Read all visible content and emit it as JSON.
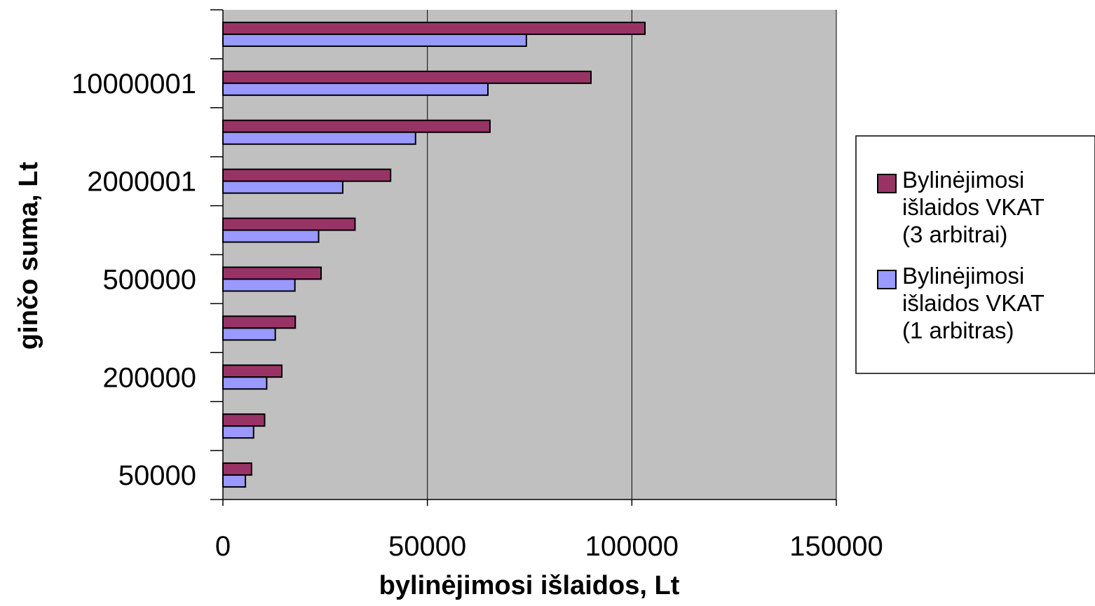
{
  "chart_data": {
    "type": "bar",
    "orientation": "horizontal",
    "title": "",
    "xlabel": "bylinėjimosi išlaidos, Lt",
    "ylabel": "ginčo suma, Lt",
    "xlim": [
      0,
      150000
    ],
    "x_ticks": [
      0,
      50000,
      100000,
      150000
    ],
    "category_labels": [
      "50000",
      "",
      "200000",
      "",
      "500000",
      "",
      "2000001",
      "",
      "10000001",
      ""
    ],
    "grid": "vertical major gridlines",
    "legend_position": "right",
    "plot_background": "#c0c0c0",
    "series": [
      {
        "name": "Bylinėjimosi išlaidos VKAT (3 arbitrai)",
        "color": "#993366",
        "values": [
          7000,
          10200,
          14400,
          17700,
          24000,
          32300,
          41000,
          65300,
          90000,
          103200
        ]
      },
      {
        "name": "Bylinėjimosi išlaidos VKAT (1 arbitras)",
        "color": "#9999ff",
        "values": [
          5500,
          7500,
          10700,
          12800,
          17600,
          23400,
          29300,
          47100,
          64800,
          74200
        ]
      }
    ]
  }
}
